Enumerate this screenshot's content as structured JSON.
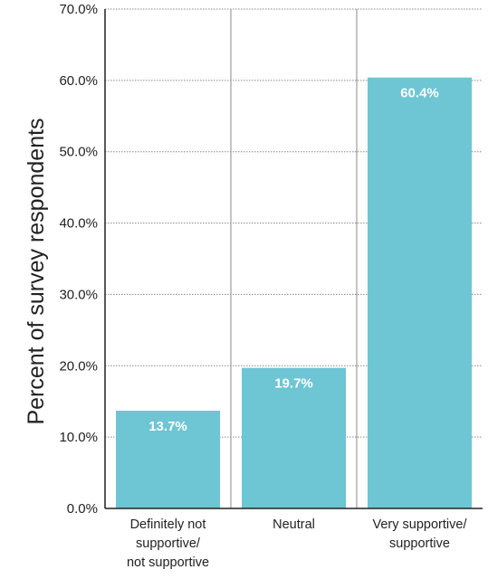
{
  "chart_data": {
    "type": "bar",
    "categories": [
      [
        "Definitely not",
        "supportive/",
        "not supportive"
      ],
      [
        "Neutral"
      ],
      [
        "Very supportive/",
        "supportive"
      ]
    ],
    "values": [
      13.7,
      19.7,
      60.4
    ],
    "data_labels": [
      "13.7%",
      "19.7%",
      "60.4%"
    ],
    "title": "",
    "xlabel": "",
    "ylabel": "Percent of survey respondents",
    "ylim": [
      0,
      70
    ],
    "yticks": [
      "0.0%",
      "10.0%",
      "20.0%",
      "30.0%",
      "40.0%",
      "50.0%",
      "60.0%",
      "70.0%"
    ],
    "grid": true,
    "bar_color": "#6ec5d3",
    "grid_color": "#888888"
  }
}
